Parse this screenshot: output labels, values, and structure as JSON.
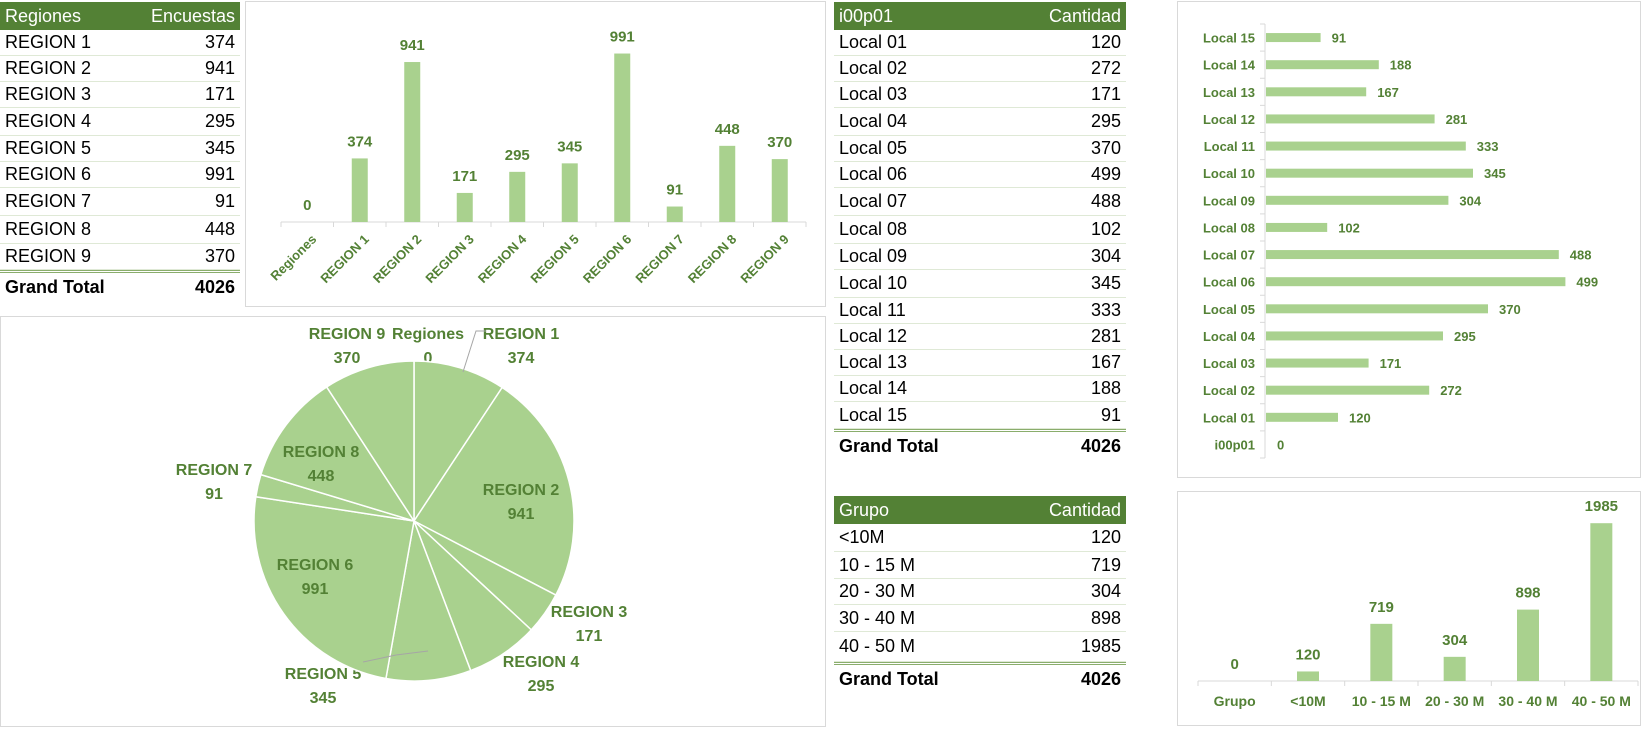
{
  "regions_table": {
    "header": {
      "col1": "Regiones",
      "col2": "Encuestas"
    },
    "rows": [
      {
        "name": "REGION 1",
        "value": "374"
      },
      {
        "name": "REGION 2",
        "value": "941"
      },
      {
        "name": "REGION 3",
        "value": "171"
      },
      {
        "name": "REGION 4",
        "value": "295"
      },
      {
        "name": "REGION 5",
        "value": "345"
      },
      {
        "name": "REGION 6",
        "value": "991"
      },
      {
        "name": "REGION 7",
        "value": "91"
      },
      {
        "name": "REGION 8",
        "value": "448"
      },
      {
        "name": "REGION 9",
        "value": "370"
      }
    ],
    "total_label": "Grand Total",
    "total_value": "4026"
  },
  "locals_table": {
    "header": {
      "col1": "i00p01",
      "col2": "Cantidad"
    },
    "rows": [
      {
        "name": "Local 01",
        "value": "120"
      },
      {
        "name": "Local 02",
        "value": "272"
      },
      {
        "name": "Local 03",
        "value": "171"
      },
      {
        "name": "Local 04",
        "value": "295"
      },
      {
        "name": "Local 05",
        "value": "370"
      },
      {
        "name": "Local 06",
        "value": "499"
      },
      {
        "name": "Local 07",
        "value": "488"
      },
      {
        "name": "Local 08",
        "value": "102"
      },
      {
        "name": "Local 09",
        "value": "304"
      },
      {
        "name": "Local 10",
        "value": "345"
      },
      {
        "name": "Local 11",
        "value": "333"
      },
      {
        "name": "Local 12",
        "value": "281"
      },
      {
        "name": "Local 13",
        "value": "167"
      },
      {
        "name": "Local 14",
        "value": "188"
      },
      {
        "name": "Local 15",
        "value": "91"
      }
    ],
    "total_label": "Grand Total",
    "total_value": "4026"
  },
  "groups_table": {
    "header": {
      "col1": "Grupo",
      "col2": "Cantidad"
    },
    "rows": [
      {
        "name": "<10M",
        "value": "120"
      },
      {
        "name": "10 - 15 M",
        "value": "719"
      },
      {
        "name": "20 - 30 M",
        "value": "304"
      },
      {
        "name": "30 - 40 M",
        "value": "898"
      },
      {
        "name": "40 - 50 M",
        "value": "1985"
      }
    ],
    "total_label": "Grand Total",
    "total_value": "4026"
  },
  "colors": {
    "header": "#538135",
    "bar": "#a9d18e",
    "label": "#538135"
  },
  "chart_data": [
    {
      "id": "regions-bar",
      "type": "bar",
      "categories": [
        "Regiones",
        "REGION 1",
        "REGION 2",
        "REGION 3",
        "REGION 4",
        "REGION 5",
        "REGION 6",
        "REGION 7",
        "REGION 8",
        "REGION 9"
      ],
      "values": [
        0,
        374,
        941,
        171,
        295,
        345,
        991,
        91,
        448,
        370
      ],
      "ylim": [
        0,
        1000
      ]
    },
    {
      "id": "regions-pie",
      "type": "pie",
      "categories": [
        "Regiones",
        "REGION 1",
        "REGION 2",
        "REGION 3",
        "REGION 4",
        "REGION 5",
        "REGION 6",
        "REGION 7",
        "REGION 8",
        "REGION 9"
      ],
      "values": [
        0,
        374,
        941,
        171,
        295,
        345,
        991,
        91,
        448,
        370
      ]
    },
    {
      "id": "locals-barh",
      "type": "bar",
      "orientation": "horizontal",
      "categories": [
        "i00p01",
        "Local 01",
        "Local 02",
        "Local 03",
        "Local 04",
        "Local 05",
        "Local 06",
        "Local 07",
        "Local 08",
        "Local 09",
        "Local 10",
        "Local 11",
        "Local 12",
        "Local 13",
        "Local 14",
        "Local 15"
      ],
      "values": [
        0,
        120,
        272,
        171,
        295,
        370,
        499,
        488,
        102,
        304,
        345,
        333,
        281,
        167,
        188,
        91
      ],
      "xlim": [
        0,
        500
      ]
    },
    {
      "id": "groups-bar",
      "type": "bar",
      "categories": [
        "Grupo",
        "<10M",
        "10 - 15 M",
        "20 - 30 M",
        "30 - 40 M",
        "40 - 50 M"
      ],
      "values": [
        0,
        120,
        719,
        304,
        898,
        1985
      ],
      "ylim": [
        0,
        2000
      ]
    }
  ]
}
